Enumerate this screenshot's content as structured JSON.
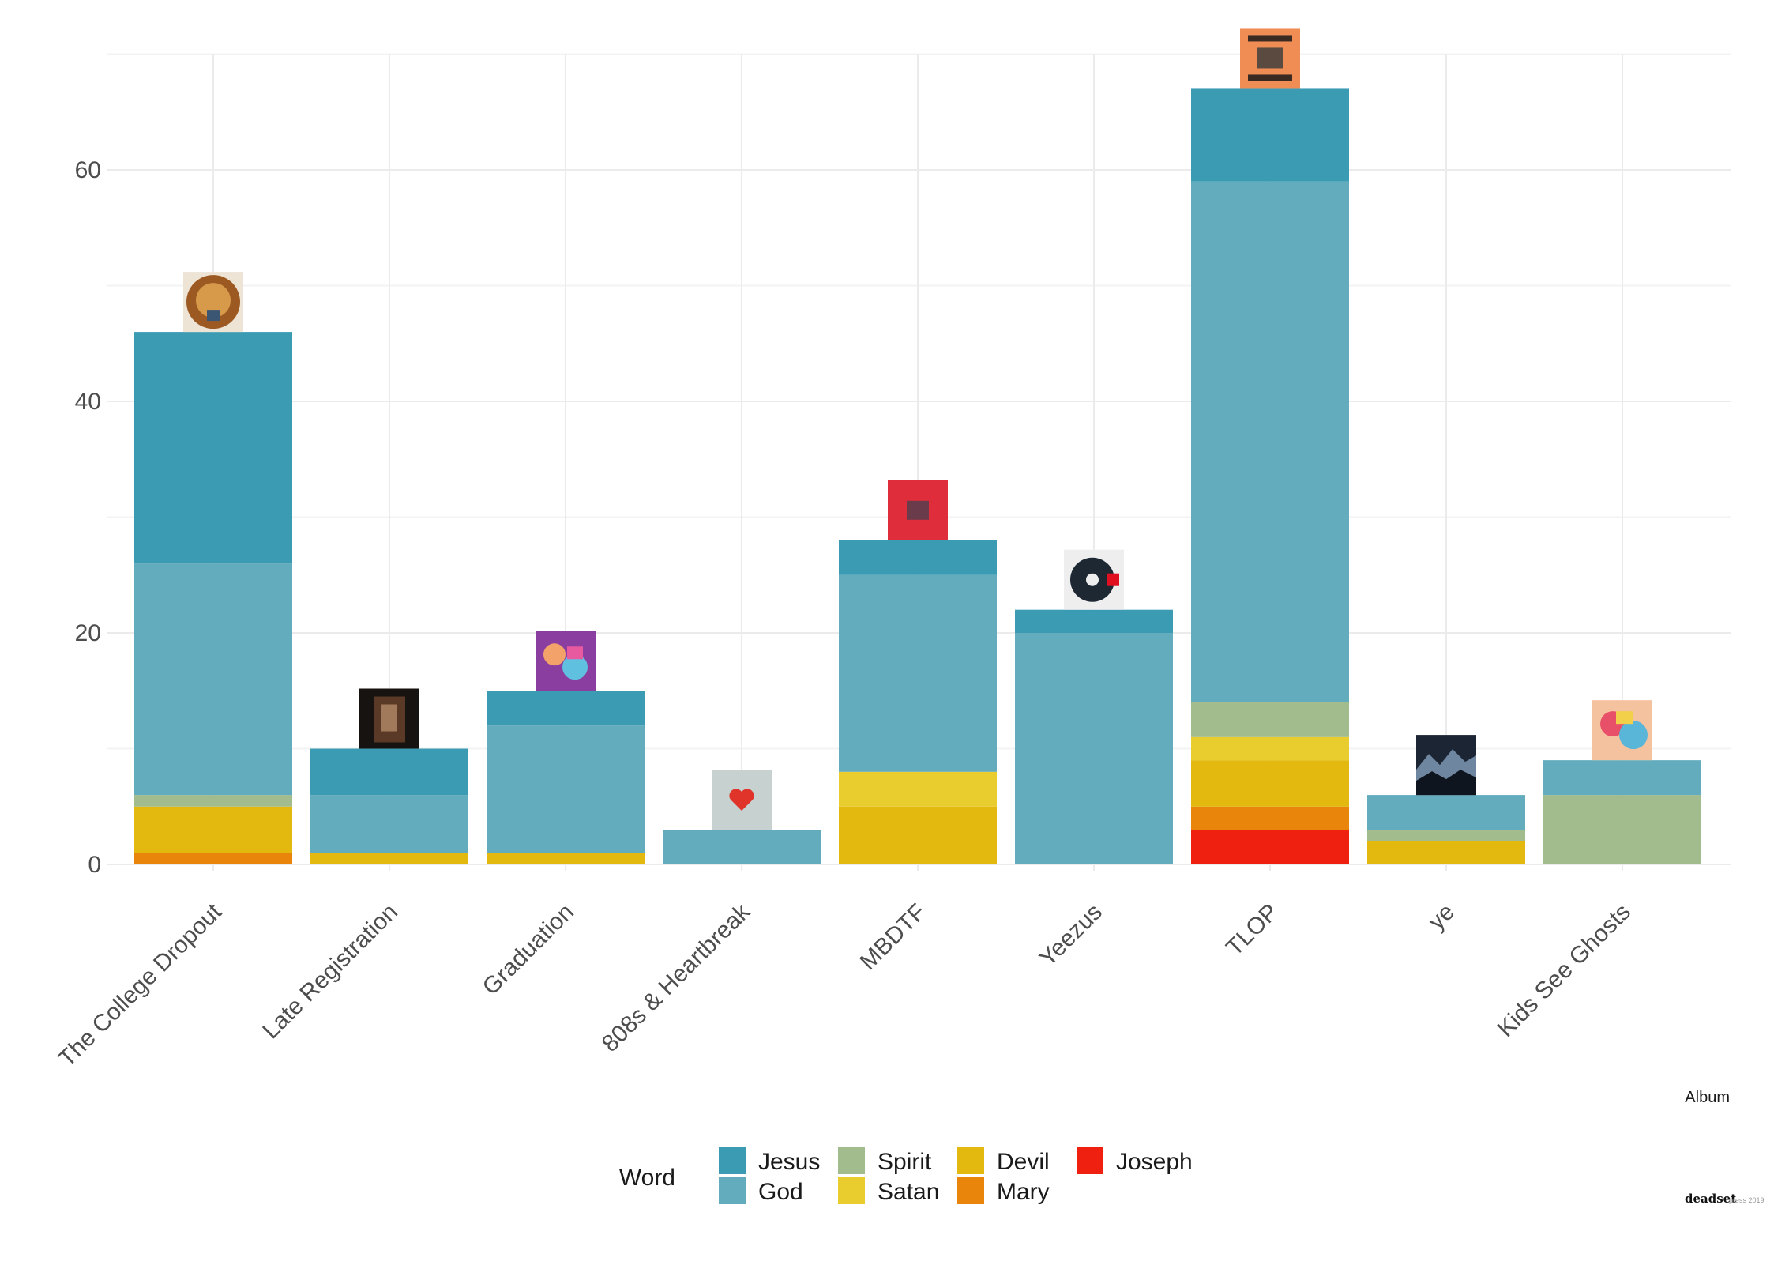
{
  "chart_data": {
    "type": "bar",
    "stacked": true,
    "xlabel": "Album",
    "ylabel": "",
    "ylim": [
      0,
      70
    ],
    "yticks": [
      0,
      20,
      40,
      60
    ],
    "grid": true,
    "legend_title": "Word",
    "legend_position": "bottom",
    "categories": [
      "The College Dropout",
      "Late Registration",
      "Graduation",
      "808s & Heartbreak",
      "MBDTF",
      "Yeezus",
      "TLOP",
      "ye",
      "Kids See Ghosts"
    ],
    "series": [
      {
        "name": "Joseph",
        "color": "#f02010",
        "values": [
          0,
          0,
          0,
          0,
          0,
          0,
          3,
          0,
          0
        ]
      },
      {
        "name": "Mary",
        "color": "#e8850a",
        "values": [
          1,
          0,
          0,
          0,
          0,
          0,
          2,
          0,
          0
        ]
      },
      {
        "name": "Devil",
        "color": "#e3b90f",
        "values": [
          4,
          1,
          1,
          0,
          5,
          0,
          4,
          2,
          0
        ]
      },
      {
        "name": "Satan",
        "color": "#e9cc2e",
        "values": [
          0,
          0,
          0,
          0,
          3,
          0,
          2,
          0,
          0
        ]
      },
      {
        "name": "Spirit",
        "color": "#a2bc8d",
        "values": [
          1,
          0,
          0,
          0,
          0,
          0,
          3,
          1,
          6
        ]
      },
      {
        "name": "God",
        "color": "#62acbd",
        "values": [
          20,
          5,
          11,
          3,
          17,
          20,
          45,
          3,
          3
        ]
      },
      {
        "name": "Jesus",
        "color": "#3a9bb3",
        "values": [
          20,
          4,
          3,
          0,
          3,
          2,
          8,
          0,
          0
        ]
      }
    ],
    "legend_entries": [
      "Jesus",
      "God",
      "Spirit",
      "Satan",
      "Devil",
      "Mary",
      "Joseph"
    ],
    "annotations": [
      "album-cover-image"
    ],
    "credit": {
      "name": "deadset",
      "sub": "press 2019"
    }
  }
}
